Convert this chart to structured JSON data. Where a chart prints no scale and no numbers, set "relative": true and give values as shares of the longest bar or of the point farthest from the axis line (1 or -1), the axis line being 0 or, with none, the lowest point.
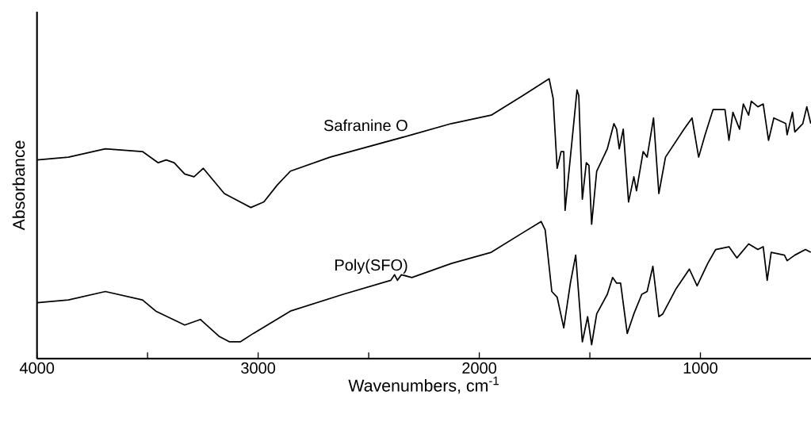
{
  "chart_data": {
    "type": "line",
    "relative": true,
    "xlabel": "Wavenumbers, cm$^{-1}$",
    "ylabel": "Absorbance",
    "xlim": [
      4000,
      500
    ],
    "xticks": [
      4000,
      {
        "value": 3500,
        "label": null
      },
      3000,
      {
        "value": 2500,
        "label": null
      },
      2000,
      {
        "value": 1500,
        "label": null
      },
      1000
    ],
    "tick_labels": "x",
    "series": [
      {
        "name": "Safranine O",
        "color": "#000000",
        "x": [
          4000,
          3858,
          3691,
          3523,
          3452,
          3416,
          3380,
          3332,
          3290,
          3248,
          3153,
          3033,
          2974,
          2914,
          2854,
          2675,
          2305,
          2126,
          1946,
          1803,
          1684,
          1666,
          1648,
          1630,
          1618,
          1612,
          1588,
          1558,
          1550,
          1534,
          1516,
          1504,
          1492,
          1469,
          1421,
          1391,
          1379,
          1367,
          1349,
          1325,
          1301,
          1289,
          1259,
          1241,
          1212,
          1188,
          1158,
          1074,
          1038,
          1008,
          979,
          943,
          913,
          889,
          871,
          853,
          823,
          806,
          782,
          770,
          740,
          716,
          692,
          668,
          614,
          608,
          584,
          573,
          537,
          519,
          501
        ],
        "values": [
          0.71,
          0.72,
          0.75,
          0.74,
          0.7,
          0.71,
          0.7,
          0.66,
          0.65,
          0.68,
          0.59,
          0.54,
          0.56,
          0.62,
          0.67,
          0.72,
          0.8,
          0.84,
          0.87,
          0.94,
          1.0,
          0.93,
          0.68,
          0.74,
          0.74,
          0.53,
          0.72,
          0.96,
          0.94,
          0.57,
          0.7,
          0.69,
          0.48,
          0.67,
          0.75,
          0.84,
          0.82,
          0.75,
          0.82,
          0.56,
          0.65,
          0.6,
          0.74,
          0.72,
          0.86,
          0.59,
          0.72,
          0.82,
          0.86,
          0.72,
          0.8,
          0.89,
          0.89,
          0.89,
          0.78,
          0.88,
          0.82,
          0.91,
          0.87,
          0.92,
          0.9,
          0.91,
          0.78,
          0.86,
          0.84,
          0.8,
          0.88,
          0.81,
          0.84,
          0.9,
          0.84
        ]
      },
      {
        "name": "Poly(SFO)",
        "color": "#000000",
        "x": [
          4000,
          3858,
          3691,
          3523,
          3463,
          3332,
          3261,
          3177,
          3129,
          3081,
          3022,
          2854,
          2615,
          2400,
          2383,
          2370,
          2352,
          2305,
          2126,
          1946,
          1803,
          1720,
          1702,
          1672,
          1648,
          1618,
          1588,
          1564,
          1534,
          1510,
          1492,
          1469,
          1421,
          1397,
          1379,
          1361,
          1331,
          1301,
          1265,
          1241,
          1215,
          1188,
          1170,
          1110,
          1050,
          1015,
          967,
          931,
          871,
          835,
          782,
          740,
          716,
          698,
          680,
          620,
          608,
          573,
          525,
          501
        ],
        "values": [
          0.2,
          0.21,
          0.24,
          0.21,
          0.17,
          0.12,
          0.14,
          0.08,
          0.06,
          0.06,
          0.09,
          0.17,
          0.23,
          0.28,
          0.3,
          0.28,
          0.3,
          0.29,
          0.34,
          0.38,
          0.45,
          0.49,
          0.46,
          0.24,
          0.22,
          0.11,
          0.27,
          0.37,
          0.06,
          0.15,
          0.05,
          0.16,
          0.23,
          0.29,
          0.27,
          0.27,
          0.09,
          0.16,
          0.23,
          0.24,
          0.33,
          0.15,
          0.16,
          0.25,
          0.32,
          0.26,
          0.34,
          0.39,
          0.4,
          0.36,
          0.41,
          0.39,
          0.4,
          0.28,
          0.38,
          0.37,
          0.35,
          0.37,
          0.39,
          0.38
        ]
      }
    ]
  }
}
